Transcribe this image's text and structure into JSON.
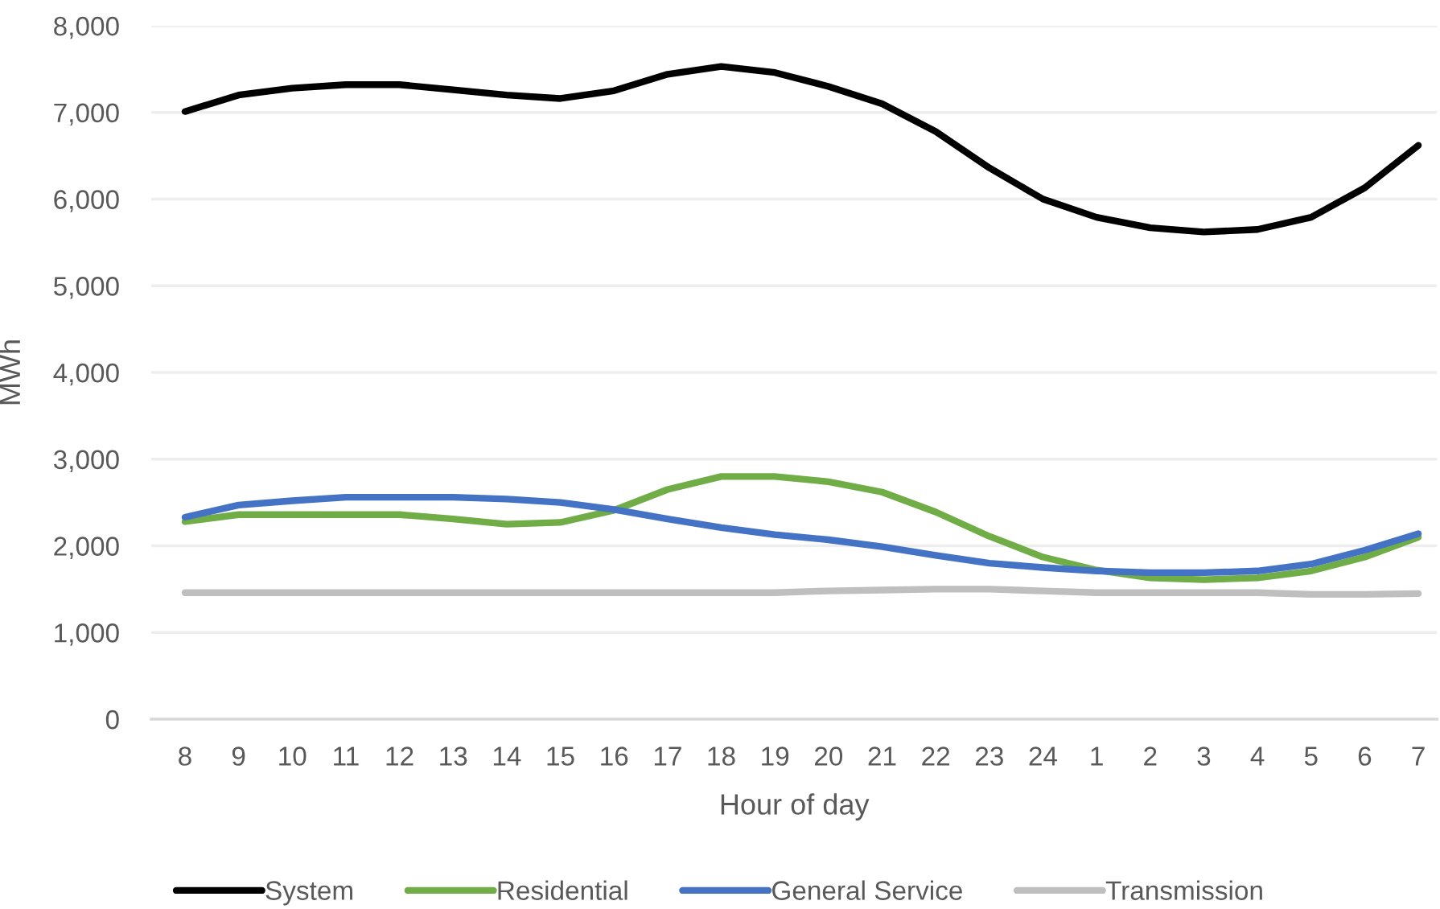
{
  "chart_data": {
    "type": "line",
    "xlabel": "Hour of day",
    "ylabel": "MWh",
    "categories": [
      "8",
      "9",
      "10",
      "11",
      "12",
      "13",
      "14",
      "15",
      "16",
      "17",
      "18",
      "19",
      "20",
      "21",
      "22",
      "23",
      "24",
      "1",
      "2",
      "3",
      "4",
      "5",
      "6",
      "7"
    ],
    "series": [
      {
        "name": "System",
        "color": "#000000",
        "values": [
          7010,
          7200,
          7280,
          7320,
          7320,
          7260,
          7200,
          7160,
          7250,
          7440,
          7530,
          7460,
          7300,
          7100,
          6780,
          6360,
          6000,
          5790,
          5670,
          5620,
          5650,
          5790,
          6130,
          6620
        ]
      },
      {
        "name": "Residential",
        "color": "#70ad47",
        "values": [
          2280,
          2360,
          2360,
          2360,
          2360,
          2310,
          2250,
          2270,
          2410,
          2650,
          2800,
          2800,
          2740,
          2620,
          2390,
          2110,
          1870,
          1720,
          1630,
          1610,
          1630,
          1710,
          1870,
          2100
        ]
      },
      {
        "name": "General Service",
        "color": "#4472c4",
        "values": [
          2330,
          2470,
          2520,
          2560,
          2560,
          2560,
          2540,
          2500,
          2420,
          2310,
          2210,
          2130,
          2070,
          1990,
          1890,
          1800,
          1750,
          1710,
          1690,
          1690,
          1710,
          1790,
          1950,
          2140
        ]
      },
      {
        "name": "Transmission",
        "color": "#bfbfbf",
        "values": [
          1460,
          1460,
          1460,
          1460,
          1460,
          1460,
          1460,
          1460,
          1460,
          1460,
          1460,
          1460,
          1480,
          1490,
          1500,
          1500,
          1480,
          1460,
          1460,
          1460,
          1460,
          1440,
          1440,
          1450
        ]
      }
    ],
    "ylim": [
      0,
      8000
    ],
    "yticks": [
      0,
      {
        "value": 1000,
        "label": "1,000"
      },
      {
        "value": 2000,
        "label": "2,000"
      },
      {
        "value": 3000,
        "label": "3,000"
      },
      {
        "value": 4000,
        "label": "4,000"
      },
      {
        "value": 5000,
        "label": "5,000"
      },
      {
        "value": 6000,
        "label": "6,000"
      },
      {
        "value": 7000,
        "label": "7,000"
      },
      {
        "value": 8000,
        "label": "8,000"
      }
    ],
    "grid": "y",
    "legend": "bottom",
    "marker": "none",
    "line_style": "solid"
  }
}
